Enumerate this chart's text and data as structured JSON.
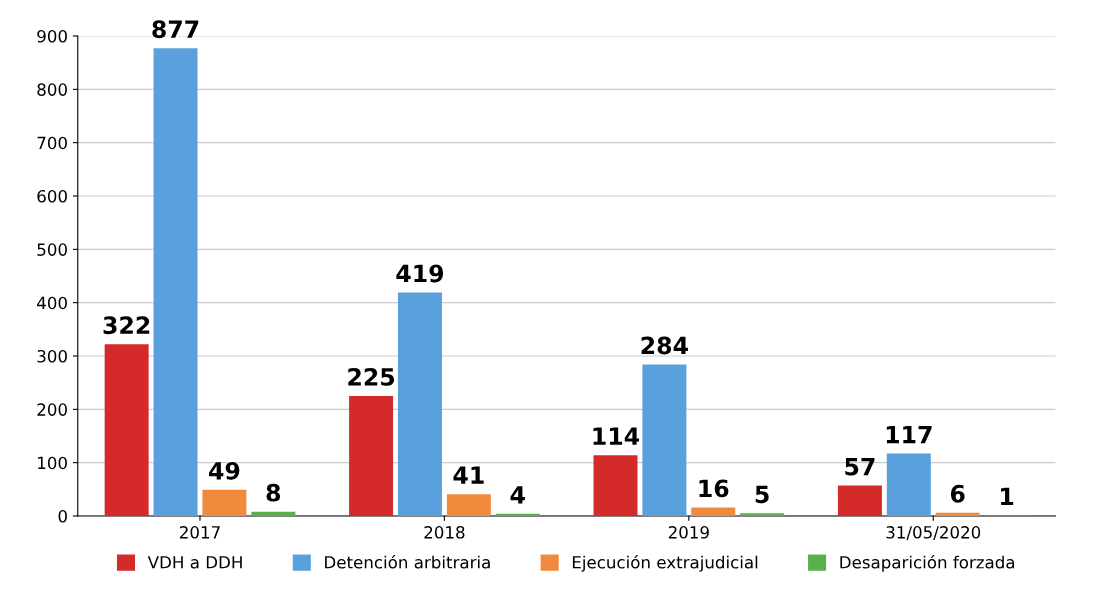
{
  "chart_data": {
    "type": "bar",
    "categories": [
      "2017",
      "2018",
      "2019",
      "31/05/2020"
    ],
    "series": [
      {
        "name": "VDH a DDH",
        "color": "#d42a2a",
        "values": [
          322,
          225,
          114,
          57
        ]
      },
      {
        "name": "Detención arbitraria",
        "color": "#5aa0dc",
        "values": [
          877,
          419,
          284,
          117
        ]
      },
      {
        "name": "Ejecución extrajudicial",
        "color": "#f08a3c",
        "values": [
          49,
          41,
          16,
          6
        ]
      },
      {
        "name": "Desaparición forzada",
        "color": "#5ab04a",
        "values": [
          8,
          4,
          5,
          1
        ]
      }
    ],
    "ylim": [
      0,
      900
    ],
    "yticks": [
      0,
      100,
      200,
      300,
      400,
      500,
      600,
      700,
      800,
      900
    ],
    "grid": "y",
    "legend": "bottom",
    "data_labels": true
  }
}
